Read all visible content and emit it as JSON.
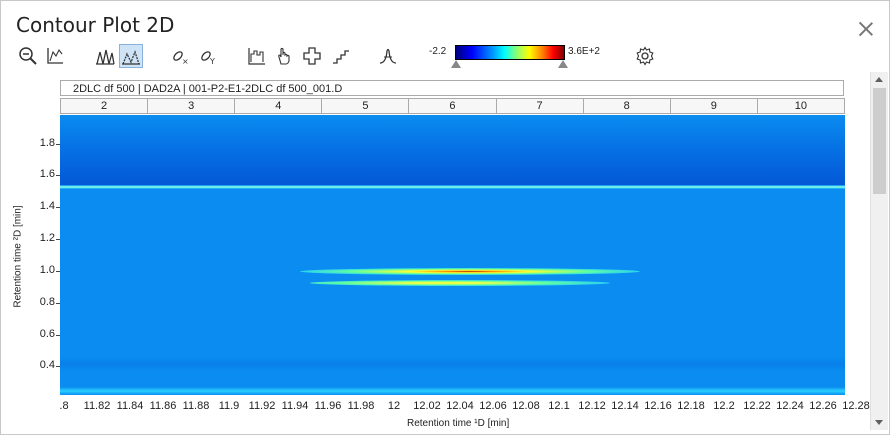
{
  "window": {
    "title": "Contour Plot 2D"
  },
  "toolbar": {
    "buttons": [
      "zoom-out-icon",
      "axis-icon",
      "peaks-icon",
      "contour-peaks-icon",
      "link-x-icon",
      "link-y-icon",
      "histogram-icon",
      "hand-icon",
      "crosshair-icon",
      "step-icon",
      "peak-shape-icon",
      "gear-icon"
    ]
  },
  "colorbar": {
    "min_label": "-2.2",
    "max_label": "3.6E+2"
  },
  "plot_info": {
    "label": "2DLC df 500 | DAD2A | 001-P2-E1-2DLC df 500_001.D"
  },
  "segments": [
    "2",
    "3",
    "4",
    "5",
    "6",
    "7",
    "8",
    "9",
    "10"
  ],
  "chart_data": {
    "type": "heatmap",
    "xlabel": "Retention time ¹D [min]",
    "ylabel": "Retention time ²D [min]",
    "x_ticks": [
      ".8",
      "11.82",
      "11.84",
      "11.86",
      "11.88",
      "11.9",
      "11.92",
      "11.94",
      "11.96",
      "11.98",
      "12",
      "12.02",
      "12.04",
      "12.06",
      "12.08",
      "12.1",
      "12.12",
      "12.14",
      "12.16",
      "12.18",
      "12.2",
      "12.22",
      "12.24",
      "12.26",
      "12.28"
    ],
    "y_ticks": [
      "1.8",
      "1.6",
      "1.4",
      "1.2",
      "1.0",
      "0.8",
      "0.6",
      "0.4"
    ],
    "xlim": [
      11.8,
      12.28
    ],
    "ylim": [
      0.22,
      1.98
    ],
    "features": [
      {
        "y": 1.49,
        "intensity": "high",
        "x_range": [
          11.8,
          12.28
        ]
      },
      {
        "y": 0.98,
        "intensity": "peak",
        "x_range": [
          11.96,
          12.18
        ]
      },
      {
        "y": 0.91,
        "intensity": "medium",
        "x_range": [
          11.98,
          12.14
        ]
      }
    ]
  }
}
